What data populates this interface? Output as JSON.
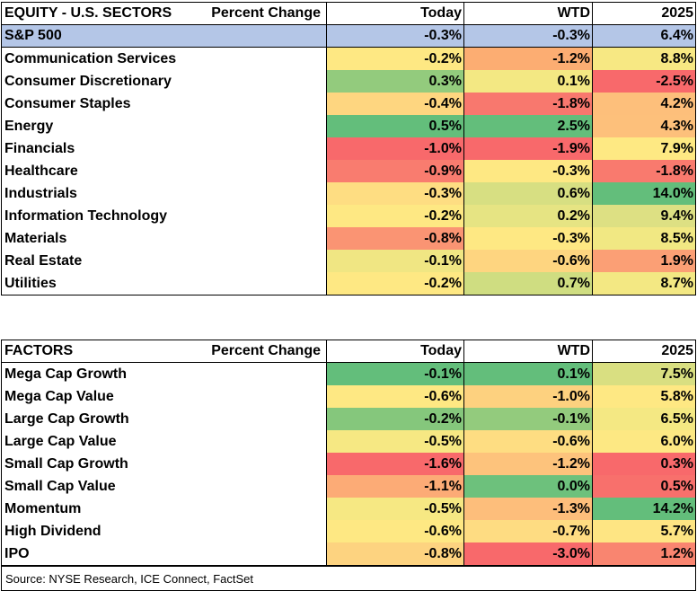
{
  "sectors": {
    "title": "EQUITY - U.S. SECTORS",
    "subtitle": "Percent Change",
    "col_today": "Today",
    "col_wtd": "WTD",
    "col_ytd": "2025",
    "summary": {
      "name": "S&P 500",
      "today": "-0.3%",
      "wtd": "-0.3%",
      "ytd": "6.4%"
    },
    "rows": [
      {
        "name": "Communication Services",
        "today": "-0.2%",
        "wtd": "-1.2%",
        "ytd": "8.8%",
        "c_today": "#fee883",
        "c_wtd": "#fcad72",
        "c_ytd": "#f7e883"
      },
      {
        "name": "Consumer Discretionary",
        "today": "0.3%",
        "wtd": "0.1%",
        "ytd": "-2.5%",
        "c_today": "#93cb7d",
        "c_wtd": "#f3e883",
        "c_ytd": "#f8696b"
      },
      {
        "name": "Consumer Staples",
        "today": "-0.4%",
        "wtd": "-1.8%",
        "ytd": "4.2%",
        "c_today": "#fed680",
        "c_wtd": "#f8786e",
        "c_ytd": "#fdbf7b"
      },
      {
        "name": "Energy",
        "today": "0.5%",
        "wtd": "2.5%",
        "ytd": "4.3%",
        "c_today": "#63be7b",
        "c_wtd": "#63be7b",
        "c_ytd": "#fdc07b"
      },
      {
        "name": "Financials",
        "today": "-1.0%",
        "wtd": "-1.9%",
        "ytd": "7.9%",
        "c_today": "#f8696b",
        "c_wtd": "#f8696b",
        "c_ytd": "#fee983"
      },
      {
        "name": "Healthcare",
        "today": "-0.9%",
        "wtd": "-0.3%",
        "ytd": "-1.8%",
        "c_today": "#f97c6f",
        "c_wtd": "#fee883",
        "c_ytd": "#f97a6e"
      },
      {
        "name": "Industrials",
        "today": "-0.3%",
        "wtd": "0.6%",
        "ytd": "14.0%",
        "c_today": "#fedd82",
        "c_wtd": "#d7df82",
        "c_ytd": "#63be7b"
      },
      {
        "name": "Information Technology",
        "today": "-0.2%",
        "wtd": "0.2%",
        "ytd": "9.4%",
        "c_today": "#fee883",
        "c_wtd": "#e6e483",
        "c_ytd": "#dde083"
      },
      {
        "name": "Materials",
        "today": "-0.8%",
        "wtd": "-0.3%",
        "ytd": "8.5%",
        "c_today": "#fa9473",
        "c_wtd": "#fee883",
        "c_ytd": "#f1e883"
      },
      {
        "name": "Real Estate",
        "today": "-0.1%",
        "wtd": "-0.6%",
        "ytd": "1.9%",
        "c_today": "#f0e683",
        "c_wtd": "#fed580",
        "c_ytd": "#fb9f75"
      },
      {
        "name": "Utilities",
        "today": "-0.2%",
        "wtd": "0.7%",
        "ytd": "8.7%",
        "c_today": "#fee883",
        "c_wtd": "#cfdd81",
        "c_ytd": "#f3e883"
      }
    ]
  },
  "factors": {
    "title": "FACTORS",
    "subtitle": "Percent Change",
    "col_today": "Today",
    "col_wtd": "WTD",
    "col_ytd": "2025",
    "rows": [
      {
        "name": "Mega Cap Growth",
        "today": "-0.1%",
        "wtd": "0.1%",
        "ytd": "7.5%",
        "c_today": "#63be7b",
        "c_wtd": "#63be7b",
        "c_ytd": "#d9df81"
      },
      {
        "name": "Mega Cap Value",
        "today": "-0.6%",
        "wtd": "-1.0%",
        "ytd": "5.8%",
        "c_today": "#fee883",
        "c_wtd": "#fdd17f",
        "c_ytd": "#fee883"
      },
      {
        "name": "Large Cap Growth",
        "today": "-0.2%",
        "wtd": "-0.1%",
        "ytd": "6.5%",
        "c_today": "#85c77c",
        "c_wtd": "#93cb7d",
        "c_ytd": "#f4e883"
      },
      {
        "name": "Large Cap Value",
        "today": "-0.5%",
        "wtd": "-0.6%",
        "ytd": "6.0%",
        "c_today": "#f6e883",
        "c_wtd": "#fedd82",
        "c_ytd": "#fde883"
      },
      {
        "name": "Small Cap Growth",
        "today": "-1.6%",
        "wtd": "-1.2%",
        "ytd": "0.3%",
        "c_today": "#f8696b",
        "c_wtd": "#fdc37c",
        "c_ytd": "#f8696b"
      },
      {
        "name": "Small Cap Value",
        "today": "-1.1%",
        "wtd": "0.0%",
        "ytd": "0.5%",
        "c_today": "#fcab76",
        "c_wtd": "#6dc17c",
        "c_ytd": "#f8706c"
      },
      {
        "name": "Momentum",
        "today": "-0.5%",
        "wtd": "-1.3%",
        "ytd": "14.2%",
        "c_today": "#f6e883",
        "c_wtd": "#fdbe7b",
        "c_ytd": "#63be7b"
      },
      {
        "name": "High Dividend",
        "today": "-0.6%",
        "wtd": "-0.7%",
        "ytd": "5.7%",
        "c_today": "#fee883",
        "c_wtd": "#fedc82",
        "c_ytd": "#fee583"
      },
      {
        "name": "IPO",
        "today": "-0.8%",
        "wtd": "-3.0%",
        "ytd": "1.2%",
        "c_today": "#fdd380",
        "c_wtd": "#f8696b",
        "c_ytd": "#f98570"
      }
    ]
  },
  "source": "Source: NYSE Research, ICE Connect, FactSet"
}
